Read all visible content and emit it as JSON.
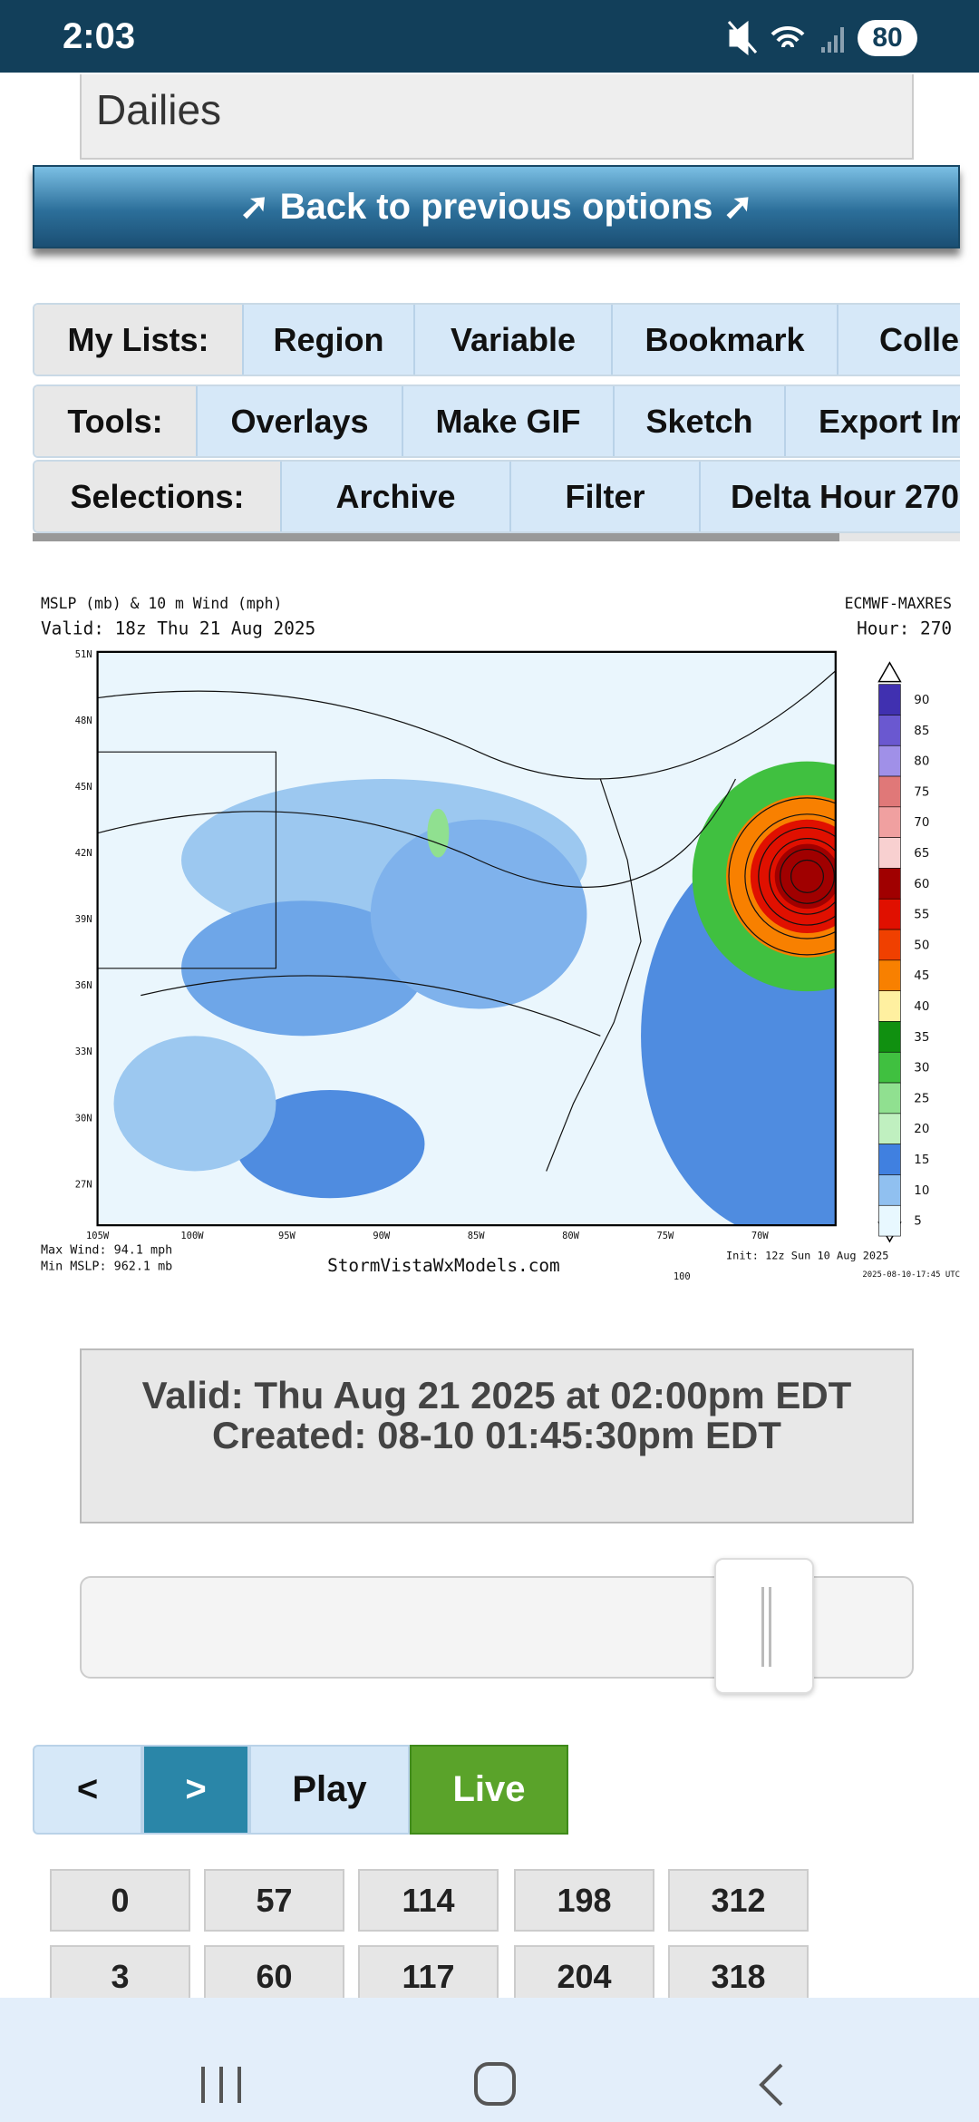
{
  "status": {
    "time": "2:03",
    "battery": "80"
  },
  "header": {
    "dropdown": "Dailies",
    "back_button": "➚ Back to previous options ➚"
  },
  "toolbar": {
    "my_lists": {
      "label": "My Lists:",
      "items": [
        "Region",
        "Variable",
        "Bookmark",
        "Collec"
      ]
    },
    "tools": {
      "label": "Tools:",
      "items": [
        "Overlays",
        "Make GIF",
        "Sketch",
        "Export Im"
      ]
    },
    "selections": {
      "label": "Selections:",
      "items": [
        "Archive",
        "Filter",
        "Delta Hour 270"
      ]
    }
  },
  "map": {
    "title": "MSLP (mb) & 10 m Wind (mph)",
    "valid": "Valid: 18z Thu 21 Aug 2025",
    "model": "ECMWF-MAXRES",
    "hour": "Hour: 270",
    "max_wind": "Max Wind: 94.1 mph",
    "min_mslp": "Min MSLP: 962.1 mb",
    "site": "StormVistaWxModels.com",
    "scale_label": "100",
    "init": "Init: 12z Sun 10 Aug 2025",
    "timestamp": "2025-08-10-17:45 UTC",
    "lat_labels": [
      "51N",
      "48N",
      "45N",
      "42N",
      "39N",
      "36N",
      "33N",
      "30N",
      "27N"
    ],
    "lon_labels": [
      "105W",
      "100W",
      "95W",
      "90W",
      "85W",
      "80W",
      "75W",
      "70W"
    ],
    "legend": {
      "levels": [
        90,
        85,
        80,
        75,
        70,
        65,
        60,
        55,
        50,
        45,
        40,
        35,
        30,
        25,
        20,
        15,
        10,
        5
      ],
      "colors": [
        "#4030b0",
        "#6a58d0",
        "#a090e8",
        "#e07878",
        "#f0a0a0",
        "#f8d0d0",
        "#a00000",
        "#e01000",
        "#f04000",
        "#f88000",
        "#fff0a0",
        "#109010",
        "#40c040",
        "#90e090",
        "#c0f0c0",
        "#4080e0",
        "#90c0f0",
        "#e8f8ff"
      ]
    }
  },
  "info": {
    "valid": "Valid: Thu Aug 21 2025 at 02:00pm EDT",
    "created": "Created: 08-10 01:45:30pm EDT"
  },
  "controls": {
    "prev": "<",
    "next": ">",
    "play": "Play",
    "live": "Live"
  },
  "hours": {
    "rows": [
      [
        0,
        57,
        114,
        198,
        312
      ],
      [
        3,
        60,
        117,
        204,
        318
      ]
    ]
  }
}
